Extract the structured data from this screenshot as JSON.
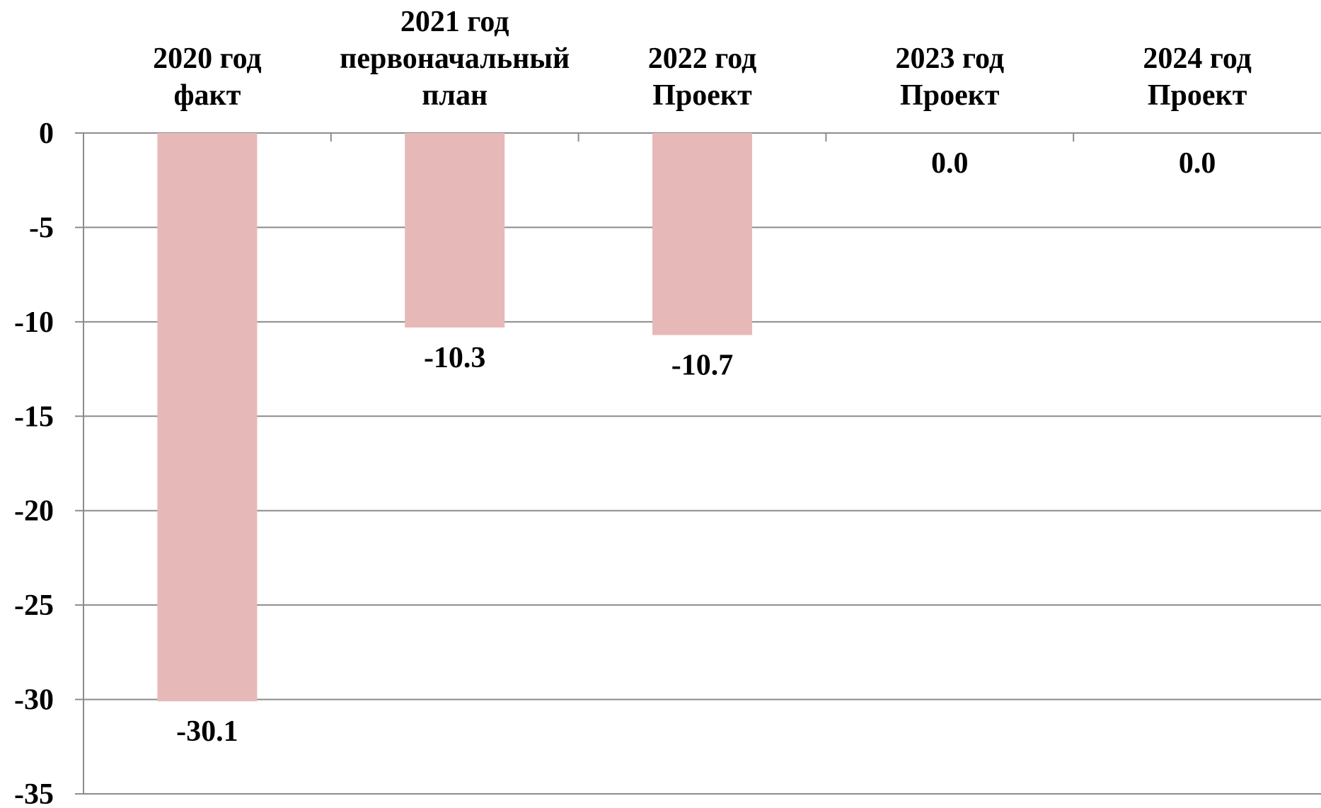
{
  "chart_data": {
    "type": "bar",
    "categories": [
      [
        "2020 год",
        "факт"
      ],
      [
        "2021 год",
        "первоначальный",
        "план"
      ],
      [
        "2022 год",
        "Проект"
      ],
      [
        "2023 год",
        "Проект"
      ],
      [
        "2024 год",
        "Проект"
      ]
    ],
    "values": [
      -30.1,
      -10.3,
      -10.7,
      0.0,
      0.0
    ],
    "data_labels": [
      "-30.1",
      "-10.3",
      "-10.7",
      "0.0",
      "0.0"
    ],
    "ylim": [
      -35,
      0
    ],
    "y_ticks": [
      0,
      -5,
      -10,
      -15,
      -20,
      -25,
      -30,
      -35
    ],
    "y_tick_labels": [
      "0",
      "-5",
      "-10",
      "-15",
      "-20",
      "-25",
      "-30",
      "-35"
    ],
    "x_axis_position": "top",
    "grid": true,
    "legend": "none",
    "bar_color": "#e6b9b8",
    "grid_color": "#8c8c8c",
    "title": "",
    "xlabel": "",
    "ylabel": ""
  }
}
